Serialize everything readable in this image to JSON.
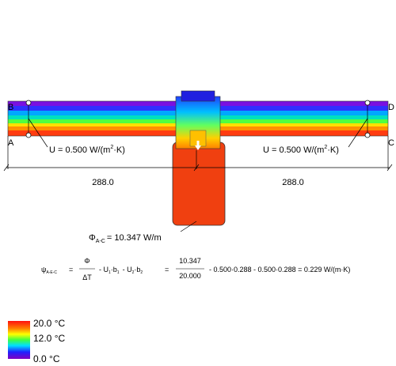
{
  "corner_labels": [
    "B",
    "D",
    "A",
    "C"
  ],
  "u_values": [
    {
      "prefix": "U = 0.500 W/(m",
      "sup": "2",
      "suffix": "·K)"
    },
    {
      "prefix": "U = 0.500 W/(m",
      "sup": "2",
      "suffix": "·K)"
    }
  ],
  "dimensions": [
    "288.0",
    "288.0"
  ],
  "flux": {
    "symbol": "Φ",
    "sub": "A-C",
    "text": "= 10.347 W/m"
  },
  "formula": {
    "psi": "ψ",
    "psi_sub": "A-E-C",
    "eq1": "=",
    "num1": "Φ",
    "den1": "ΔT",
    "t1": "-  U",
    "s1": "1",
    "t2": "·b",
    "s2": "1",
    "t3": "-  U",
    "s3": "2",
    "t4": "·b",
    "s4": "2",
    "eq2": "=",
    "num2": "10.347",
    "den2": "20.000",
    "rest": "-  0.500·0.288  -  0.500·0.288  =  0.229 W/(m·K)"
  },
  "legend": [
    "20.0 °C",
    "12.0 °C",
    "0.0 °C"
  ]
}
